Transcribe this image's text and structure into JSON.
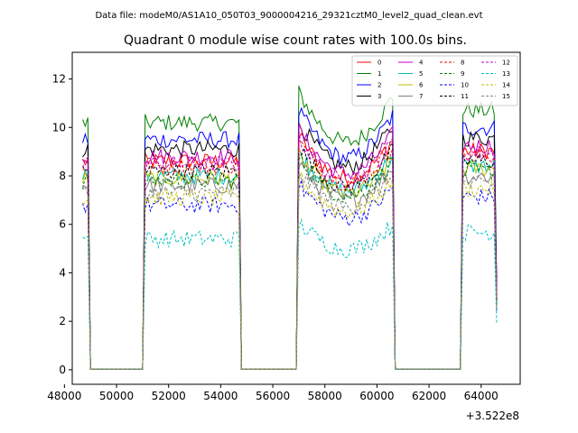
{
  "header_text": "Data file: modeM0/AS1A10_050T03_9000004216_29321cztM0_level2_quad_clean.evt",
  "chart_data": {
    "type": "line",
    "title": "Quadrant 0 module wise count rates with 100.0s bins.",
    "xlabel": "",
    "ylabel": "",
    "offset_text": "+3.522e8",
    "xlim": [
      48300,
      65500
    ],
    "ylim": [
      -0.6,
      13.1
    ],
    "xticks": [
      48000,
      50000,
      52000,
      54000,
      56000,
      58000,
      60000,
      62000,
      64000
    ],
    "xtick_labels": [
      "48000",
      "50000",
      "52000",
      "54000",
      "56000",
      "58000",
      "60000",
      "62000",
      "64000"
    ],
    "yticks": [
      0,
      2,
      4,
      6,
      8,
      10,
      12
    ],
    "ytick_labels": [
      "0",
      "2",
      "4",
      "6",
      "8",
      "10",
      "12"
    ],
    "legend_position": "top-right",
    "x_start": 48700,
    "bin_size": 100,
    "profile": {
      "gaps": [
        [
          49000,
          51000
        ],
        [
          54800,
          56900
        ],
        [
          60700,
          63200
        ]
      ],
      "edges_high": [
        48700,
        51100,
        54700,
        57000,
        60600,
        63300
      ]
    },
    "series": [
      {
        "name": "0",
        "color": "#ff0000",
        "dash": "solid",
        "level": 8.6
      },
      {
        "name": "1",
        "color": "#008000",
        "dash": "solid",
        "level": 10.2
      },
      {
        "name": "2",
        "color": "#0000ff",
        "dash": "solid",
        "level": 9.5
      },
      {
        "name": "3",
        "color": "#000000",
        "dash": "solid",
        "level": 9.1
      },
      {
        "name": "4",
        "color": "#bf00bf",
        "dash": "solid",
        "level": 8.8
      },
      {
        "name": "5",
        "color": "#00bfbf",
        "dash": "solid",
        "level": 8.0
      },
      {
        "name": "6",
        "color": "#bfbf00",
        "dash": "solid",
        "level": 7.9
      },
      {
        "name": "7",
        "color": "#808080",
        "dash": "solid",
        "level": 7.6
      },
      {
        "name": "8",
        "color": "#ff0000",
        "dash": "dashed",
        "level": 8.4
      },
      {
        "name": "9",
        "color": "#008000",
        "dash": "dashed",
        "level": 7.8
      },
      {
        "name": "10",
        "color": "#0000ff",
        "dash": "dashed",
        "level": 6.8
      },
      {
        "name": "11",
        "color": "#000000",
        "dash": "dashed",
        "level": 8.2
      },
      {
        "name": "12",
        "color": "#bf00bf",
        "dash": "dashed",
        "level": 8.5
      },
      {
        "name": "13",
        "color": "#00bfbf",
        "dash": "dashed",
        "level": 5.4
      },
      {
        "name": "14",
        "color": "#bfbf00",
        "dash": "dashed",
        "level": 7.1
      },
      {
        "name": "15",
        "color": "#808080",
        "dash": "dashed",
        "level": 7.3
      }
    ]
  }
}
